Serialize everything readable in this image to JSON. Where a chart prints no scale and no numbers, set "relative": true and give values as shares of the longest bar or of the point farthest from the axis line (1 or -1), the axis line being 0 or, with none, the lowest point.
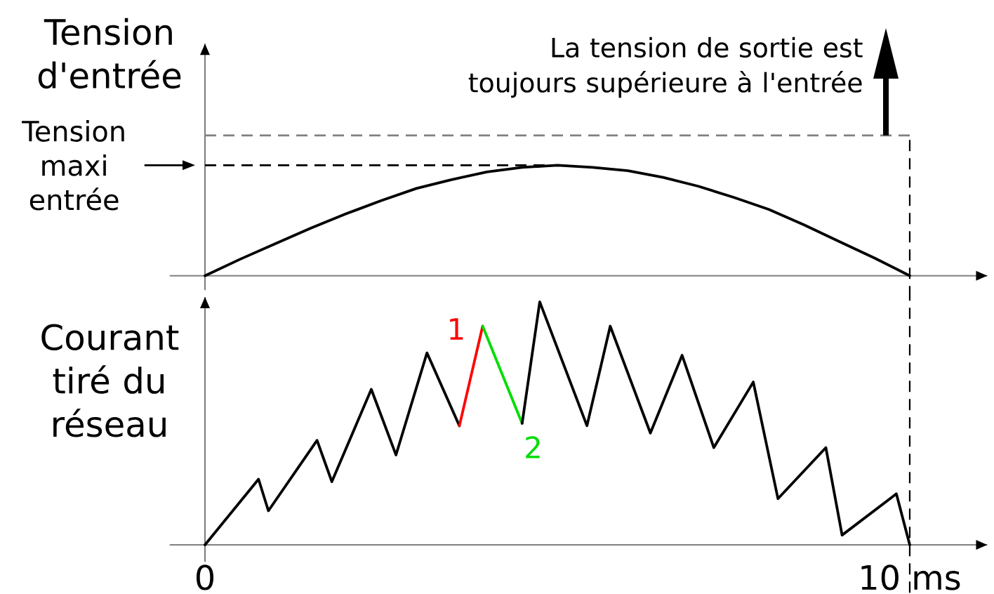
{
  "chart_data": [
    {
      "type": "line",
      "ylabel": "Tension d'entrée",
      "relative": true,
      "tick_labels": false,
      "xlim": [
        -0.5,
        11.1
      ],
      "x": [
        0,
        0.5,
        1,
        1.5,
        2,
        2.5,
        3,
        3.5,
        4,
        4.5,
        5,
        5.5,
        6,
        6.5,
        7,
        7.5,
        8,
        8.5,
        9,
        9.5,
        10
      ],
      "series": [
        {
          "color": "#000000",
          "values": [
            0,
            0.15,
            0.29,
            0.43,
            0.56,
            0.68,
            0.79,
            0.87,
            0.94,
            0.98,
            1,
            0.98,
            0.95,
            0.89,
            0.81,
            0.71,
            0.6,
            0.46,
            0.31,
            0.16,
            0
          ]
        }
      ],
      "ref_lines": [
        {
          "axis": "y",
          "value": 1,
          "label": "Tension maxi entrée",
          "color": "#000000",
          "line_style": "dashed"
        },
        {
          "axis": "y",
          "value": 1.27,
          "color": "#808080",
          "line_style": "dashed"
        },
        {
          "axis": "x",
          "value": 10,
          "color": "#000000",
          "line_style": "dashed"
        }
      ],
      "annotations": [
        "La tension de sortie est toujours supérieure à l'entrée"
      ]
    },
    {
      "type": "line",
      "ylabel": "Courant tiré du réseau",
      "relative": true,
      "xlim": [
        -0.5,
        11.1
      ],
      "xticks": [
        0,
        {
          "value": 10,
          "label": "10 ms"
        }
      ],
      "series": [
        {
          "color": "#000000",
          "x": [
            0,
            0.76,
            0.9,
            1.59,
            1.8,
            2.36,
            2.71,
            3.15,
            3.61
          ],
          "values": [
            0,
            0.27,
            0.14,
            0.43,
            0.26,
            0.64,
            0.37,
            0.79,
            0.49
          ]
        },
        {
          "name": "1",
          "color": "#ff0000",
          "x": [
            3.61,
            3.94
          ],
          "values": [
            0.49,
            0.9
          ]
        },
        {
          "name": "2",
          "color": "#00dd00",
          "x": [
            3.94,
            4.5
          ],
          "values": [
            0.9,
            0.5
          ]
        },
        {
          "color": "#000000",
          "x": [
            4.5,
            4.75,
            5.42,
            5.75,
            6.32,
            6.77,
            7.22,
            7.78,
            8.13,
            8.81,
            9.04,
            9.81,
            10
          ],
          "values": [
            0.5,
            1,
            0.49,
            0.9,
            0.46,
            0.78,
            0.4,
            0.67,
            0.19,
            0.4,
            0.04,
            0.21,
            0
          ]
        }
      ],
      "ref_lines": [
        {
          "axis": "x",
          "value": 10,
          "color": "#000000",
          "line_style": "dashed"
        }
      ]
    }
  ]
}
